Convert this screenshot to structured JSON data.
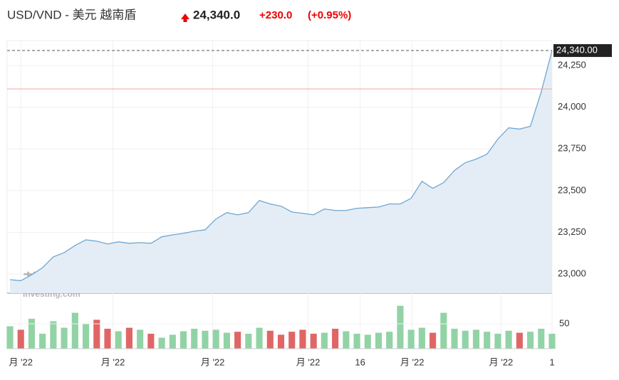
{
  "chart_data": {
    "type": "line",
    "title": "USD/VND - 美元 越南盾",
    "price": "24,340.0",
    "change": "+230.0",
    "change_pct": "(+0.95%)",
    "watermark": "英为财情",
    "watermark_sub": "Investing.com",
    "values": [
      22966,
      22960,
      22995,
      23038,
      23103,
      23128,
      23171,
      23205,
      23197,
      23180,
      23193,
      23184,
      23188,
      23184,
      23223,
      23235,
      23244,
      23257,
      23265,
      23330,
      23368,
      23355,
      23368,
      23441,
      23420,
      23407,
      23372,
      23364,
      23355,
      23390,
      23381,
      23381,
      23394,
      23398,
      23402,
      23420,
      23420,
      23454,
      23556,
      23514,
      23548,
      23621,
      23668,
      23689,
      23719,
      23809,
      23877,
      23869,
      23886,
      24092,
      24340
    ],
    "color": "#6ea6d3",
    "area_color": "#e4edf5",
    "ylim": [
      22885,
      24400
    ],
    "yticks": [
      {
        "value": 23000,
        "label": "23,000"
      },
      {
        "value": 23250,
        "label": "23,250"
      },
      {
        "value": 23500,
        "label": "23,500"
      },
      {
        "value": 23750,
        "label": "23,750"
      },
      {
        "value": 24000,
        "label": "24,000"
      },
      {
        "value": 24250,
        "label": "24,250"
      }
    ],
    "last_value": {
      "value": 24340,
      "label": "24,340.00"
    },
    "prev_close": 24110,
    "prev_close_color": "#f2a5a5",
    "xticks": [
      {
        "value": 1,
        "label": "月 '22"
      },
      {
        "value": 9.5,
        "label": "月 '22"
      },
      {
        "value": 18.7,
        "label": "月 '22"
      },
      {
        "value": 27.5,
        "label": "月 '22"
      },
      {
        "value": 32.3,
        "label": "16"
      },
      {
        "value": 37.1,
        "label": "月 '22"
      },
      {
        "value": 45.3,
        "label": "月 '22"
      },
      {
        "value": 50,
        "label": "1"
      }
    ],
    "volume": {
      "values": [
        45,
        38,
        60,
        30,
        55,
        42,
        72,
        50,
        58,
        40,
        35,
        42,
        38,
        30,
        22,
        28,
        35,
        40,
        36,
        38,
        32,
        34,
        30,
        42,
        36,
        28,
        34,
        38,
        30,
        32,
        40,
        35,
        30,
        28,
        32,
        34,
        86,
        38,
        42,
        32,
        72,
        40,
        36,
        38,
        34,
        30,
        36,
        32,
        34,
        40,
        30
      ],
      "ylim": [
        0,
        107
      ],
      "yticks": [
        50
      ],
      "up_color": "#92d3a5",
      "down_color": "#e06666"
    },
    "grid": true
  }
}
